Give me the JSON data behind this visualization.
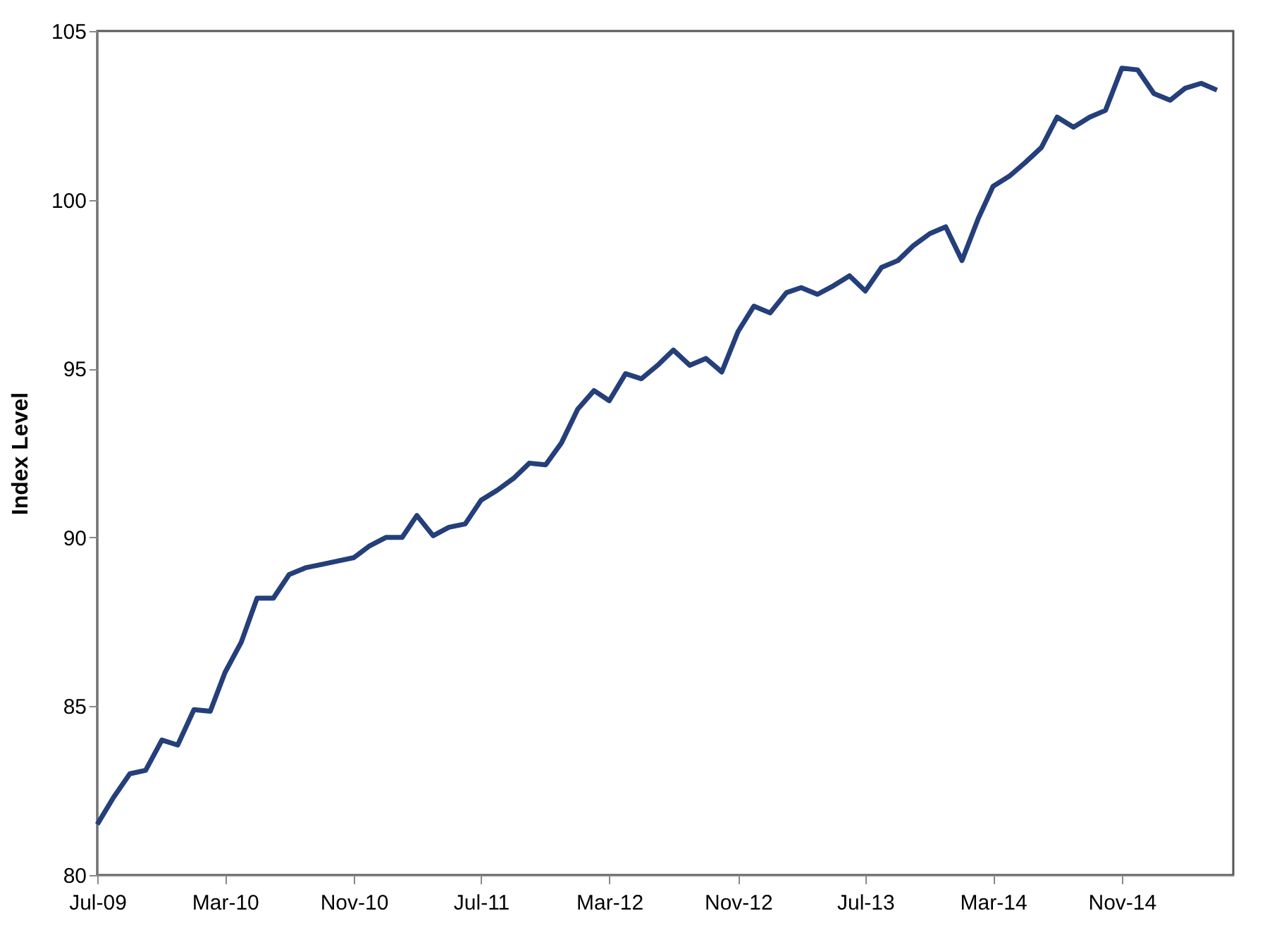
{
  "chart_data": {
    "type": "line",
    "ylabel": "Index Level",
    "x": [
      "2009-07",
      "2009-08",
      "2009-09",
      "2009-10",
      "2009-11",
      "2009-12",
      "2010-01",
      "2010-02",
      "2010-03",
      "2010-04",
      "2010-05",
      "2010-06",
      "2010-07",
      "2010-08",
      "2010-09",
      "2010-10",
      "2010-11",
      "2010-12",
      "2011-01",
      "2011-02",
      "2011-03",
      "2011-04",
      "2011-05",
      "2011-06",
      "2011-07",
      "2011-08",
      "2011-09",
      "2011-10",
      "2011-11",
      "2011-12",
      "2012-01",
      "2012-02",
      "2012-03",
      "2012-04",
      "2012-05",
      "2012-06",
      "2012-07",
      "2012-08",
      "2012-09",
      "2012-10",
      "2012-11",
      "2012-12",
      "2013-01",
      "2013-02",
      "2013-03",
      "2013-04",
      "2013-05",
      "2013-06",
      "2013-07",
      "2013-08",
      "2013-09",
      "2013-10",
      "2013-11",
      "2013-12",
      "2014-01",
      "2014-02",
      "2014-03",
      "2014-04",
      "2014-05",
      "2014-06",
      "2014-07",
      "2014-08",
      "2014-09",
      "2014-10",
      "2014-11",
      "2014-12",
      "2015-01",
      "2015-02",
      "2015-03",
      "2015-04",
      "2015-05"
    ],
    "series": [
      {
        "color": "#243f7a",
        "values": [
          81.5,
          82.3,
          83.0,
          83.1,
          84.0,
          83.85,
          84.9,
          84.85,
          86.0,
          86.9,
          88.2,
          88.2,
          88.9,
          89.1,
          89.2,
          89.3,
          89.4,
          89.75,
          90.0,
          90.0,
          90.65,
          90.05,
          90.3,
          90.4,
          91.1,
          91.4,
          91.75,
          92.2,
          92.15,
          92.8,
          93.8,
          94.35,
          94.05,
          94.85,
          94.7,
          95.1,
          95.55,
          95.1,
          95.3,
          94.9,
          96.1,
          96.85,
          96.65,
          97.25,
          97.4,
          97.2,
          97.45,
          97.75,
          97.3,
          98.0,
          98.2,
          98.65,
          99.0,
          99.2,
          98.2,
          99.45,
          100.4,
          100.7,
          101.1,
          101.55,
          102.45,
          102.15,
          102.45,
          102.65,
          103.9,
          103.85,
          103.15,
          102.95,
          103.3,
          103.45,
          103.25
        ]
      }
    ],
    "xlim": [
      "2009-07",
      "2015-06"
    ],
    "xticks": [
      {
        "value": "2009-07",
        "label": "Jul-09"
      },
      {
        "value": "2010-03",
        "label": "Mar-10"
      },
      {
        "value": "2010-11",
        "label": "Nov-10"
      },
      {
        "value": "2011-07",
        "label": "Jul-11"
      },
      {
        "value": "2012-03",
        "label": "Mar-12"
      },
      {
        "value": "2012-11",
        "label": "Nov-12"
      },
      {
        "value": "2013-07",
        "label": "Jul-13"
      },
      {
        "value": "2014-03",
        "label": "Mar-14"
      },
      {
        "value": "2014-11",
        "label": "Nov-14"
      }
    ],
    "ylim": [
      80,
      105
    ],
    "yticks": [
      80,
      85,
      90,
      95,
      100,
      105
    ],
    "grid": false,
    "legend": false,
    "marker": "none",
    "line_style": "solid"
  }
}
